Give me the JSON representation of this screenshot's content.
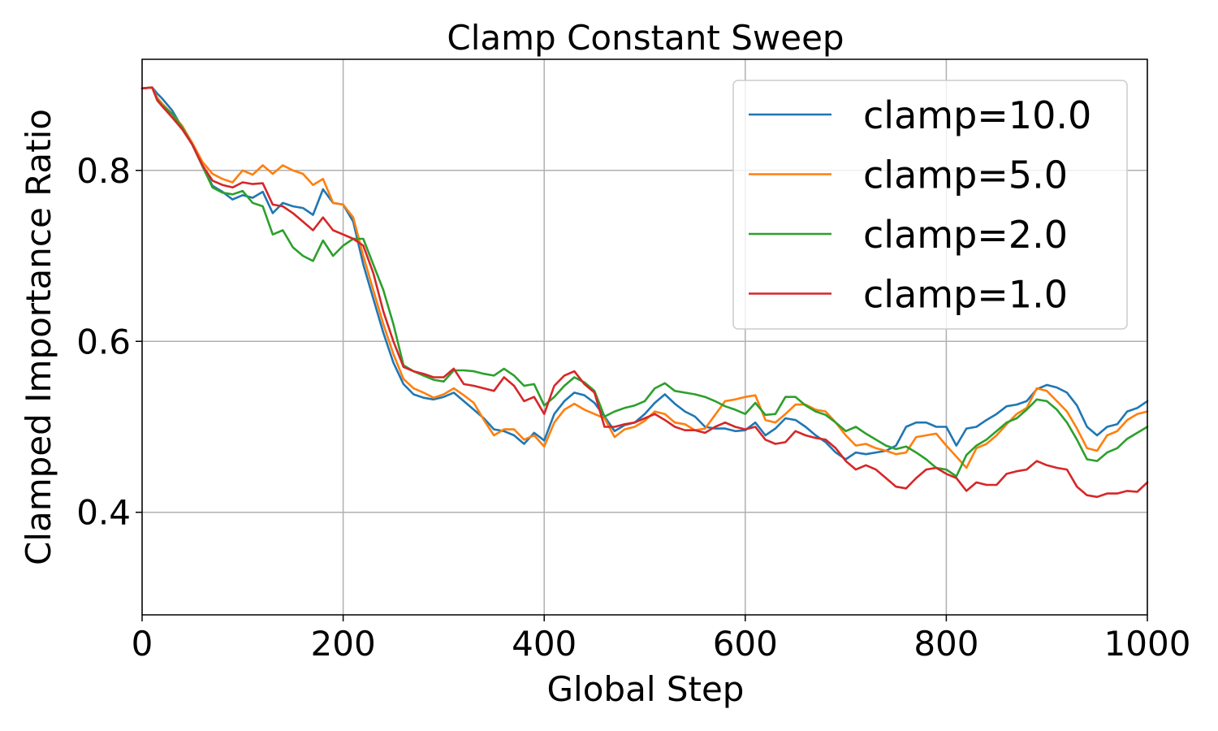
{
  "chart_data": {
    "type": "line",
    "title": "Clamp Constant Sweep",
    "xlabel": "Global Step",
    "ylabel": "Clamped Importance Ratio",
    "xlim": [
      0,
      1000
    ],
    "ylim": [
      0.28,
      0.93
    ],
    "xticks": [
      0,
      200,
      400,
      600,
      800,
      1000
    ],
    "xtick_labels": [
      "0",
      "200",
      "400",
      "600",
      "800",
      "1000"
    ],
    "yticks": [
      0.4,
      0.6,
      0.8
    ],
    "ytick_labels": [
      "0.4",
      "0.6",
      "0.8"
    ],
    "grid": true,
    "legend_position": "top-right",
    "series": [
      {
        "name": "clamp=10.0",
        "color": "#1f77b4",
        "x": [
          0,
          10,
          15,
          20,
          30,
          40,
          50,
          60,
          70,
          80,
          90,
          100,
          110,
          120,
          130,
          140,
          150,
          160,
          170,
          180,
          190,
          200,
          210,
          220,
          230,
          240,
          250,
          260,
          270,
          280,
          290,
          300,
          310,
          320,
          330,
          340,
          350,
          360,
          370,
          380,
          390,
          400,
          410,
          420,
          430,
          440,
          450,
          460,
          470,
          480,
          490,
          500,
          510,
          520,
          530,
          540,
          550,
          560,
          570,
          580,
          590,
          600,
          610,
          620,
          630,
          640,
          650,
          660,
          670,
          680,
          690,
          700,
          710,
          720,
          730,
          740,
          750,
          760,
          770,
          780,
          790,
          800,
          810,
          820,
          830,
          840,
          850,
          860,
          870,
          880,
          890,
          900,
          910,
          920,
          930,
          940,
          950,
          960,
          970,
          980,
          990,
          1000
        ],
        "y": [
          0.896,
          0.897,
          0.89,
          0.884,
          0.87,
          0.85,
          0.83,
          0.805,
          0.782,
          0.775,
          0.766,
          0.771,
          0.768,
          0.775,
          0.75,
          0.762,
          0.758,
          0.756,
          0.748,
          0.778,
          0.762,
          0.76,
          0.74,
          0.69,
          0.65,
          0.61,
          0.575,
          0.55,
          0.538,
          0.534,
          0.532,
          0.535,
          0.54,
          0.53,
          0.52,
          0.51,
          0.497,
          0.495,
          0.49,
          0.48,
          0.493,
          0.484,
          0.515,
          0.53,
          0.54,
          0.537,
          0.528,
          0.512,
          0.495,
          0.502,
          0.505,
          0.515,
          0.528,
          0.538,
          0.527,
          0.518,
          0.512,
          0.5,
          0.498,
          0.498,
          0.495,
          0.496,
          0.505,
          0.49,
          0.498,
          0.51,
          0.508,
          0.5,
          0.49,
          0.482,
          0.47,
          0.462,
          0.47,
          0.468,
          0.47,
          0.472,
          0.478,
          0.5,
          0.505,
          0.505,
          0.5,
          0.5,
          0.478,
          0.498,
          0.5,
          0.508,
          0.515,
          0.524,
          0.526,
          0.53,
          0.544,
          0.549,
          0.546,
          0.54,
          0.525,
          0.5,
          0.49,
          0.5,
          0.503,
          0.518,
          0.522,
          0.53
        ]
      },
      {
        "name": "clamp=5.0",
        "color": "#ff7f0e",
        "x": [
          0,
          10,
          15,
          20,
          30,
          40,
          50,
          60,
          70,
          80,
          90,
          100,
          110,
          120,
          130,
          140,
          150,
          160,
          170,
          180,
          190,
          200,
          210,
          220,
          230,
          240,
          250,
          260,
          270,
          280,
          290,
          300,
          310,
          320,
          330,
          340,
          350,
          360,
          370,
          380,
          390,
          400,
          410,
          420,
          430,
          440,
          450,
          460,
          470,
          480,
          490,
          500,
          510,
          520,
          530,
          540,
          550,
          560,
          570,
          580,
          590,
          600,
          610,
          620,
          630,
          640,
          650,
          660,
          670,
          680,
          690,
          700,
          710,
          720,
          730,
          740,
          750,
          760,
          770,
          780,
          790,
          800,
          810,
          820,
          830,
          840,
          850,
          860,
          870,
          880,
          890,
          900,
          910,
          920,
          930,
          940,
          950,
          960,
          970,
          980,
          990,
          1000
        ],
        "y": [
          0.896,
          0.897,
          0.885,
          0.878,
          0.866,
          0.852,
          0.832,
          0.81,
          0.796,
          0.79,
          0.786,
          0.8,
          0.795,
          0.806,
          0.796,
          0.806,
          0.8,
          0.796,
          0.783,
          0.79,
          0.762,
          0.76,
          0.745,
          0.7,
          0.66,
          0.62,
          0.585,
          0.556,
          0.545,
          0.54,
          0.534,
          0.538,
          0.545,
          0.537,
          0.528,
          0.508,
          0.49,
          0.497,
          0.497,
          0.485,
          0.49,
          0.477,
          0.505,
          0.52,
          0.527,
          0.52,
          0.515,
          0.51,
          0.488,
          0.497,
          0.5,
          0.507,
          0.518,
          0.515,
          0.505,
          0.503,
          0.496,
          0.498,
          0.514,
          0.53,
          0.532,
          0.535,
          0.537,
          0.508,
          0.505,
          0.515,
          0.526,
          0.526,
          0.52,
          0.518,
          0.505,
          0.49,
          0.478,
          0.48,
          0.475,
          0.472,
          0.468,
          0.47,
          0.488,
          0.49,
          0.492,
          0.478,
          0.465,
          0.452,
          0.475,
          0.48,
          0.49,
          0.503,
          0.515,
          0.522,
          0.545,
          0.542,
          0.53,
          0.518,
          0.498,
          0.475,
          0.472,
          0.49,
          0.495,
          0.508,
          0.515,
          0.518
        ]
      },
      {
        "name": "clamp=2.0",
        "color": "#2ca02c",
        "x": [
          0,
          10,
          15,
          20,
          30,
          40,
          50,
          60,
          70,
          80,
          90,
          100,
          110,
          120,
          130,
          140,
          150,
          160,
          170,
          180,
          190,
          200,
          210,
          220,
          230,
          240,
          250,
          260,
          270,
          280,
          290,
          300,
          310,
          320,
          330,
          340,
          350,
          360,
          370,
          380,
          390,
          400,
          410,
          420,
          430,
          440,
          450,
          460,
          470,
          480,
          490,
          500,
          510,
          520,
          530,
          540,
          550,
          560,
          570,
          580,
          590,
          600,
          610,
          620,
          630,
          640,
          650,
          660,
          670,
          680,
          690,
          700,
          710,
          720,
          730,
          740,
          750,
          760,
          770,
          780,
          790,
          800,
          810,
          820,
          830,
          840,
          850,
          860,
          870,
          880,
          890,
          900,
          910,
          920,
          930,
          940,
          950,
          960,
          970,
          980,
          990,
          1000
        ],
        "y": [
          0.896,
          0.897,
          0.883,
          0.876,
          0.866,
          0.85,
          0.83,
          0.805,
          0.78,
          0.774,
          0.772,
          0.776,
          0.762,
          0.758,
          0.725,
          0.73,
          0.71,
          0.7,
          0.694,
          0.718,
          0.7,
          0.712,
          0.72,
          0.72,
          0.69,
          0.66,
          0.62,
          0.572,
          0.565,
          0.56,
          0.555,
          0.553,
          0.566,
          0.566,
          0.565,
          0.562,
          0.56,
          0.568,
          0.56,
          0.548,
          0.55,
          0.525,
          0.535,
          0.548,
          0.558,
          0.552,
          0.542,
          0.512,
          0.518,
          0.522,
          0.525,
          0.53,
          0.545,
          0.551,
          0.542,
          0.54,
          0.538,
          0.535,
          0.53,
          0.524,
          0.52,
          0.515,
          0.528,
          0.514,
          0.515,
          0.535,
          0.535,
          0.525,
          0.518,
          0.514,
          0.505,
          0.495,
          0.5,
          0.492,
          0.485,
          0.478,
          0.474,
          0.477,
          0.47,
          0.462,
          0.452,
          0.45,
          0.442,
          0.467,
          0.478,
          0.485,
          0.495,
          0.505,
          0.51,
          0.52,
          0.532,
          0.53,
          0.52,
          0.505,
          0.485,
          0.462,
          0.46,
          0.47,
          0.475,
          0.486,
          0.493,
          0.5
        ]
      },
      {
        "name": "clamp=1.0",
        "color": "#d62728",
        "x": [
          0,
          10,
          15,
          20,
          30,
          40,
          50,
          60,
          70,
          80,
          90,
          100,
          110,
          120,
          130,
          140,
          150,
          160,
          170,
          180,
          190,
          200,
          210,
          220,
          230,
          240,
          250,
          260,
          270,
          280,
          290,
          300,
          310,
          320,
          330,
          340,
          350,
          360,
          370,
          380,
          390,
          400,
          410,
          420,
          430,
          440,
          450,
          460,
          470,
          480,
          490,
          500,
          510,
          520,
          530,
          540,
          550,
          560,
          570,
          580,
          590,
          600,
          610,
          620,
          630,
          640,
          650,
          660,
          670,
          680,
          690,
          700,
          710,
          720,
          730,
          740,
          750,
          760,
          770,
          780,
          790,
          800,
          810,
          820,
          830,
          840,
          850,
          860,
          870,
          880,
          890,
          900,
          910,
          920,
          930,
          940,
          950,
          960,
          970,
          980,
          990,
          1000
        ],
        "y": [
          0.896,
          0.897,
          0.882,
          0.875,
          0.862,
          0.848,
          0.83,
          0.806,
          0.788,
          0.783,
          0.78,
          0.786,
          0.784,
          0.785,
          0.76,
          0.758,
          0.75,
          0.74,
          0.73,
          0.745,
          0.73,
          0.725,
          0.72,
          0.712,
          0.68,
          0.635,
          0.6,
          0.57,
          0.565,
          0.562,
          0.558,
          0.558,
          0.568,
          0.55,
          0.548,
          0.545,
          0.542,
          0.558,
          0.548,
          0.53,
          0.535,
          0.515,
          0.548,
          0.56,
          0.565,
          0.55,
          0.54,
          0.5,
          0.5,
          0.503,
          0.505,
          0.51,
          0.515,
          0.508,
          0.5,
          0.496,
          0.496,
          0.493,
          0.5,
          0.505,
          0.5,
          0.497,
          0.5,
          0.485,
          0.48,
          0.482,
          0.495,
          0.49,
          0.487,
          0.485,
          0.475,
          0.46,
          0.45,
          0.455,
          0.45,
          0.44,
          0.43,
          0.428,
          0.44,
          0.45,
          0.452,
          0.445,
          0.44,
          0.425,
          0.435,
          0.432,
          0.432,
          0.445,
          0.448,
          0.45,
          0.46,
          0.455,
          0.452,
          0.45,
          0.43,
          0.42,
          0.418,
          0.422,
          0.422,
          0.425,
          0.424,
          0.435
        ]
      }
    ]
  }
}
